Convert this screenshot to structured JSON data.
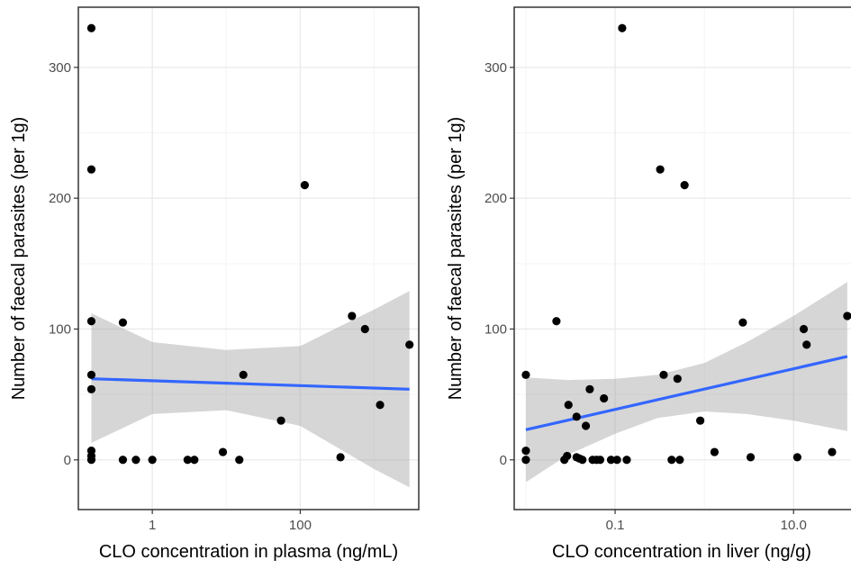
{
  "chart_data": [
    {
      "type": "scatter",
      "xlabel": "CLO concentration in plasma (ng/mL)",
      "ylabel": "Number of faecal parasites (per 1g)",
      "x_scale": "log10",
      "x_ticks": [
        {
          "value": 1,
          "label": "1"
        },
        {
          "value": 100,
          "label": "100"
        }
      ],
      "x_minor_ticks": [
        0.1,
        10,
        1000
      ],
      "y_ticks": [
        {
          "value": 0,
          "label": "0"
        },
        {
          "value": 100,
          "label": "100"
        },
        {
          "value": 200,
          "label": "200"
        },
        {
          "value": 300,
          "label": "300"
        }
      ],
      "y_minor_ticks": [
        50,
        150,
        250
      ],
      "xlim": [
        0.1,
        4000
      ],
      "ylim": [
        -38,
        346
      ],
      "grid": true,
      "points": [
        {
          "x": 0.15,
          "y": 330
        },
        {
          "x": 0.15,
          "y": 222
        },
        {
          "x": 0.15,
          "y": 106
        },
        {
          "x": 0.15,
          "y": 65
        },
        {
          "x": 0.15,
          "y": 54
        },
        {
          "x": 0.15,
          "y": 7
        },
        {
          "x": 0.15,
          "y": 3
        },
        {
          "x": 0.15,
          "y": 0
        },
        {
          "x": 0.4,
          "y": 105
        },
        {
          "x": 0.4,
          "y": 0
        },
        {
          "x": 0.6,
          "y": 0
        },
        {
          "x": 1.0,
          "y": 0
        },
        {
          "x": 3.0,
          "y": 0
        },
        {
          "x": 3.7,
          "y": 0
        },
        {
          "x": 9,
          "y": 6
        },
        {
          "x": 15,
          "y": 0
        },
        {
          "x": 17,
          "y": 65
        },
        {
          "x": 55,
          "y": 30
        },
        {
          "x": 115,
          "y": 210
        },
        {
          "x": 350,
          "y": 2
        },
        {
          "x": 500,
          "y": 110
        },
        {
          "x": 750,
          "y": 100
        },
        {
          "x": 1200,
          "y": 42
        },
        {
          "x": 3000,
          "y": 88
        }
      ],
      "fit_line": {
        "x": [
          0.15,
          3000
        ],
        "y": [
          62,
          54
        ]
      },
      "confidence_band": {
        "x": [
          0.15,
          1,
          10,
          100,
          1000,
          3000
        ],
        "upper": [
          112,
          90,
          84,
          87,
          115,
          129
        ],
        "lower": [
          13,
          35,
          38,
          26,
          -7,
          -21
        ]
      },
      "colors": {
        "points": "#000000",
        "fit_line": "#3366FF",
        "band": "#999999",
        "panel_border": "#333333",
        "grid_major": "#ebebeb",
        "grid_minor": "#f5f5f5"
      }
    },
    {
      "type": "scatter",
      "xlabel": "CLO concentration in liver (ng/g)",
      "ylabel": "Number of faecal parasites (per 1g)",
      "x_scale": "log10",
      "x_ticks": [
        {
          "value": 0.1,
          "label": "0.1"
        },
        {
          "value": 10,
          "label": "10.0"
        }
      ],
      "x_minor_ticks": [
        0.01,
        1
      ],
      "y_ticks": [
        {
          "value": 0,
          "label": "0"
        },
        {
          "value": 100,
          "label": "100"
        },
        {
          "value": 200,
          "label": "200"
        },
        {
          "value": 300,
          "label": "300"
        }
      ],
      "y_minor_ticks": [
        50,
        150,
        250
      ],
      "xlim": [
        0.0074,
        44
      ],
      "ylim": [
        -38,
        346
      ],
      "grid": true,
      "points": [
        {
          "x": 0.01,
          "y": 65
        },
        {
          "x": 0.01,
          "y": 7
        },
        {
          "x": 0.01,
          "y": 0
        },
        {
          "x": 0.022,
          "y": 106
        },
        {
          "x": 0.027,
          "y": 0
        },
        {
          "x": 0.029,
          "y": 3
        },
        {
          "x": 0.03,
          "y": 42
        },
        {
          "x": 0.037,
          "y": 33
        },
        {
          "x": 0.037,
          "y": 2
        },
        {
          "x": 0.04,
          "y": 1
        },
        {
          "x": 0.043,
          "y": 0
        },
        {
          "x": 0.047,
          "y": 26
        },
        {
          "x": 0.052,
          "y": 54
        },
        {
          "x": 0.056,
          "y": 0
        },
        {
          "x": 0.062,
          "y": 0
        },
        {
          "x": 0.068,
          "y": 0
        },
        {
          "x": 0.075,
          "y": 47
        },
        {
          "x": 0.09,
          "y": 0
        },
        {
          "x": 0.105,
          "y": 0
        },
        {
          "x": 0.12,
          "y": 330
        },
        {
          "x": 0.135,
          "y": 0
        },
        {
          "x": 0.32,
          "y": 222
        },
        {
          "x": 0.35,
          "y": 65
        },
        {
          "x": 0.43,
          "y": 0
        },
        {
          "x": 0.5,
          "y": 62
        },
        {
          "x": 0.53,
          "y": 0
        },
        {
          "x": 0.6,
          "y": 210
        },
        {
          "x": 0.9,
          "y": 30
        },
        {
          "x": 1.3,
          "y": 6
        },
        {
          "x": 2.7,
          "y": 105
        },
        {
          "x": 3.3,
          "y": 2
        },
        {
          "x": 11,
          "y": 2
        },
        {
          "x": 13,
          "y": 100
        },
        {
          "x": 14,
          "y": 88
        },
        {
          "x": 27,
          "y": 6
        },
        {
          "x": 40,
          "y": 110
        }
      ],
      "fit_line": {
        "x": [
          0.01,
          40
        ],
        "y": [
          23,
          79
        ]
      },
      "confidence_band": {
        "x": [
          0.01,
          0.03,
          0.1,
          0.3,
          1,
          3,
          10,
          40
        ],
        "upper": [
          63,
          61,
          62,
          65,
          74,
          90,
          110,
          136
        ],
        "lower": [
          -17,
          4,
          20,
          32,
          37,
          35,
          30,
          22
        ]
      },
      "colors": {
        "points": "#000000",
        "fit_line": "#3366FF",
        "band": "#999999",
        "panel_border": "#333333",
        "grid_major": "#ebebeb",
        "grid_minor": "#f5f5f5"
      }
    }
  ]
}
